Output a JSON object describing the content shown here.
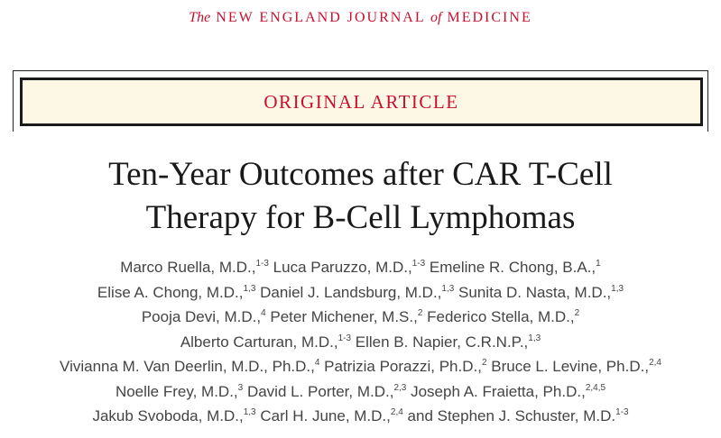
{
  "journal": {
    "prefix": "The",
    "name_a": "NEW ENGLAND JOURNAL",
    "joiner": "of",
    "name_b": "MEDICINE"
  },
  "article_type": "ORIGINAL ARTICLE",
  "title_lines": [
    "Ten-Year Outcomes after CAR T-Cell",
    "Therapy for B-Cell Lymphomas"
  ],
  "author_lines": [
    [
      {
        "name": "Marco Ruella, M.D.,",
        "sup": "1-3"
      },
      {
        "name": "Luca Paruzzo, M.D.,",
        "sup": "1-3"
      },
      {
        "name": "Emeline R. Chong, B.A.,",
        "sup": "1"
      }
    ],
    [
      {
        "name": "Elise A. Chong, M.D.,",
        "sup": "1,3"
      },
      {
        "name": "Daniel J. Landsburg, M.D.,",
        "sup": "1,3"
      },
      {
        "name": "Sunita D. Nasta, M.D.,",
        "sup": "1,3"
      }
    ],
    [
      {
        "name": "Pooja Devi, M.D.,",
        "sup": "4"
      },
      {
        "name": "Peter Michener, M.S.,",
        "sup": "2"
      },
      {
        "name": "Federico Stella, M.D.,",
        "sup": "2"
      }
    ],
    [
      {
        "name": "Alberto Carturan, M.D.,",
        "sup": "1-3"
      },
      {
        "name": "Ellen B. Napier, C.R.N.P.,",
        "sup": "1,3"
      }
    ],
    [
      {
        "name": "Vivianna M. Van Deerlin, M.D., Ph.D.,",
        "sup": "4"
      },
      {
        "name": "Patrizia Porazzi, Ph.D.,",
        "sup": "2"
      },
      {
        "name": "Bruce L. Levine, Ph.D.,",
        "sup": "2,4"
      }
    ],
    [
      {
        "name": "Noelle Frey, M.D.,",
        "sup": "3"
      },
      {
        "name": "David L. Porter, M.D.,",
        "sup": "2,3"
      },
      {
        "name": "Joseph A. Fraietta, Ph.D.,",
        "sup": "2,4,5"
      }
    ],
    [
      {
        "name": "Jakub Svoboda, M.D.,",
        "sup": "1,3"
      },
      {
        "name": "Carl H. June, M.D.,",
        "sup": "2,4"
      },
      {
        "name": "and Stephen J. Schuster, M.D.",
        "sup": "1-3"
      }
    ]
  ]
}
